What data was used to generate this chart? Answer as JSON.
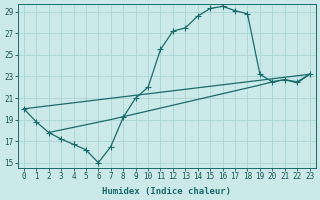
{
  "xlabel": "Humidex (Indice chaleur)",
  "ylabel": "",
  "xlim": [
    -0.5,
    23.5
  ],
  "ylim": [
    14.5,
    29.7
  ],
  "xticks": [
    0,
    1,
    2,
    3,
    4,
    5,
    6,
    7,
    8,
    9,
    10,
    11,
    12,
    13,
    14,
    15,
    16,
    17,
    18,
    19,
    20,
    21,
    22,
    23
  ],
  "yticks": [
    15,
    17,
    19,
    21,
    23,
    25,
    27,
    29
  ],
  "bg_color": "#cce9e9",
  "grid_color": "#aad4d4",
  "line_color": "#1a6b6b",
  "curve1_x": [
    0,
    1,
    2,
    3,
    4,
    5,
    6,
    7,
    8,
    9,
    10,
    11,
    12,
    13,
    14,
    15,
    16
  ],
  "curve1_y": [
    20.0,
    18.8,
    17.8,
    17.2,
    16.7,
    16.2,
    15.0,
    16.5,
    19.2,
    21.0,
    22.0,
    25.5,
    27.2,
    27.5,
    28.6,
    29.3,
    29.5
  ],
  "curve2_x": [
    16,
    17,
    18,
    19,
    20,
    21,
    22,
    23
  ],
  "curve2_y": [
    29.5,
    29.1,
    28.8,
    23.2,
    22.5,
    22.7,
    22.5,
    23.2
  ],
  "line1_x": [
    0,
    23
  ],
  "line1_y": [
    20.0,
    23.2
  ],
  "line2_x": [
    2,
    7,
    19,
    20,
    21,
    22,
    23
  ],
  "line2_y": [
    17.8,
    19.0,
    22.2,
    22.5,
    22.7,
    22.4,
    23.2
  ]
}
